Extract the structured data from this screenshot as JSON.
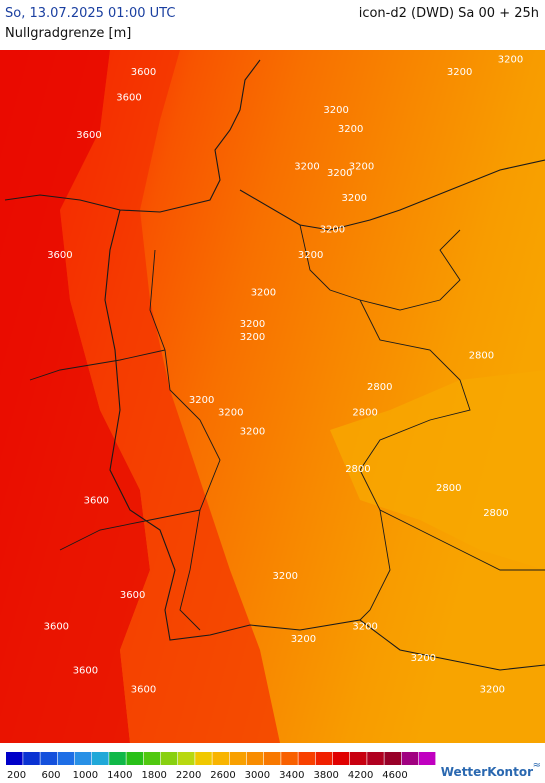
{
  "header": {
    "datetime": "So, 13.07.2025 01:00 UTC",
    "model": "icon-d2 (DWD) Sa 00 + 25h",
    "parameter": "Nullgradgrenze [m]"
  },
  "contour_labels": [
    {
      "text": "3600",
      "lon": 5.6,
      "lat": 55.6
    },
    {
      "text": "3600",
      "lon": 5.2,
      "lat": 55.2
    },
    {
      "text": "3600",
      "lon": 4.1,
      "lat": 54.6
    },
    {
      "text": "3600",
      "lon": 3.3,
      "lat": 52.7
    },
    {
      "text": "3600",
      "lon": 4.3,
      "lat": 48.8
    },
    {
      "text": "3600",
      "lon": 5.3,
      "lat": 47.3
    },
    {
      "text": "3600",
      "lon": 3.2,
      "lat": 46.8
    },
    {
      "text": "3600",
      "lon": 4.0,
      "lat": 46.1
    },
    {
      "text": "3600",
      "lon": 5.6,
      "lat": 45.8
    },
    {
      "text": "3200",
      "lon": 10.9,
      "lat": 55.0
    },
    {
      "text": "3200",
      "lon": 11.3,
      "lat": 54.7
    },
    {
      "text": "3200",
      "lon": 10.1,
      "lat": 54.1
    },
    {
      "text": "3200",
      "lon": 11.0,
      "lat": 54.0
    },
    {
      "text": "3200",
      "lon": 11.6,
      "lat": 54.1
    },
    {
      "text": "3200",
      "lon": 11.4,
      "lat": 53.6
    },
    {
      "text": "3200",
      "lon": 10.8,
      "lat": 53.1
    },
    {
      "text": "3200",
      "lon": 10.2,
      "lat": 52.7
    },
    {
      "text": "3200",
      "lon": 8.9,
      "lat": 52.1
    },
    {
      "text": "3200",
      "lon": 8.6,
      "lat": 51.6
    },
    {
      "text": "3200",
      "lon": 8.6,
      "lat": 51.4
    },
    {
      "text": "3200",
      "lon": 7.2,
      "lat": 50.4
    },
    {
      "text": "3200",
      "lon": 8.0,
      "lat": 50.2
    },
    {
      "text": "3200",
      "lon": 8.6,
      "lat": 49.9
    },
    {
      "text": "3200",
      "lon": 9.5,
      "lat": 47.6
    },
    {
      "text": "3200",
      "lon": 10.0,
      "lat": 46.6
    },
    {
      "text": "3200",
      "lon": 13.3,
      "lat": 46.3
    },
    {
      "text": "3200",
      "lon": 15.2,
      "lat": 45.8
    },
    {
      "text": "3200",
      "lon": 14.3,
      "lat": 55.6
    },
    {
      "text": "3200",
      "lon": 15.7,
      "lat": 55.8
    },
    {
      "text": "3200",
      "lon": 11.7,
      "lat": 46.8
    },
    {
      "text": "2800",
      "lon": 12.1,
      "lat": 50.6
    },
    {
      "text": "2800",
      "lon": 11.7,
      "lat": 50.2
    },
    {
      "text": "2800",
      "lon": 11.5,
      "lat": 49.3
    },
    {
      "text": "2800",
      "lon": 14.0,
      "lat": 49.0
    },
    {
      "text": "2800",
      "lon": 15.3,
      "lat": 48.6
    },
    {
      "text": "2800",
      "lon": 14.9,
      "lat": 51.1
    }
  ],
  "legend": {
    "ticks": [
      "200",
      "600",
      "1000",
      "1400",
      "1800",
      "2200",
      "2600",
      "3000",
      "3400",
      "3800",
      "4200",
      "4600"
    ],
    "colors": [
      "#0000c8",
      "#0a32d2",
      "#1450dc",
      "#1e6ee6",
      "#2890e6",
      "#20a8d8",
      "#10b848",
      "#28c018",
      "#50c810",
      "#88d010",
      "#b8d810",
      "#f0c800",
      "#f8b400",
      "#f8a000",
      "#f88c00",
      "#f87800",
      "#f86000",
      "#f84000",
      "#f02000",
      "#e00000",
      "#c80010",
      "#b00020",
      "#980028",
      "#a00080",
      "#c000c0"
    ]
  },
  "branding": {
    "name": "WetterKontor",
    "icon": "wind-icon"
  }
}
